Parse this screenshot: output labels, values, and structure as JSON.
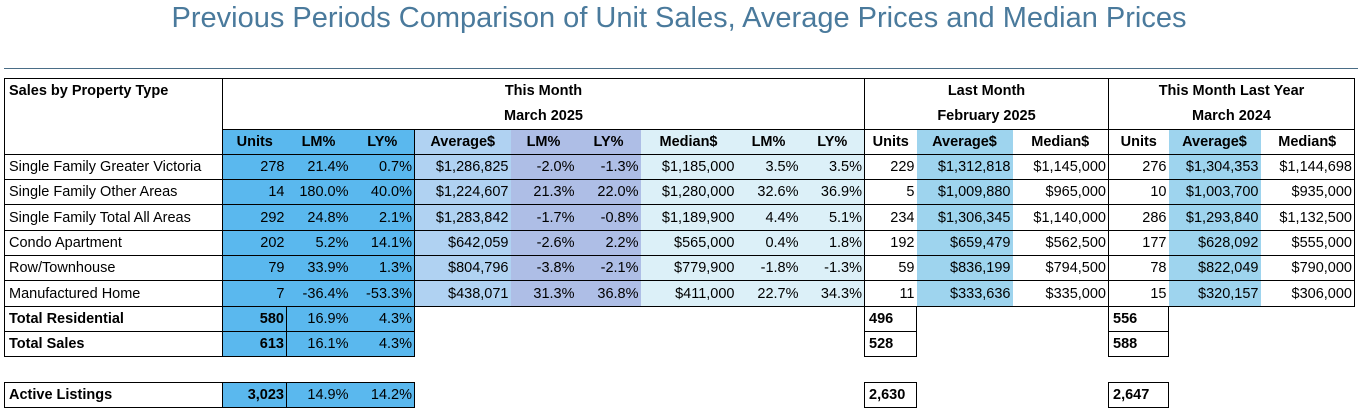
{
  "title": "Previous Periods Comparison of Unit Sales, Average Prices and Median Prices",
  "headers": {
    "row_label": "Sales by Property Type",
    "this_month": "This Month",
    "this_month_date": "March 2025",
    "last_month": "Last Month",
    "last_month_date": "February 2025",
    "last_year": "This Month Last Year",
    "last_year_date": "March 2024",
    "cols": [
      "Units",
      "LM%",
      "LY%",
      "Average$",
      "LM%",
      "LY%",
      "Median$",
      "LM%",
      "LY%",
      "Units",
      "Average$",
      "Median$",
      "Units",
      "Average$",
      "Median$"
    ]
  },
  "rows": [
    {
      "label": "Single Family Greater Victoria",
      "v": [
        "278",
        "21.4%",
        "0.7%",
        "$1,286,825",
        "-2.0%",
        "-1.3%",
        "$1,185,000",
        "3.5%",
        "3.5%",
        "229",
        "$1,312,818",
        "$1,145,000",
        "276",
        "$1,304,353",
        "$1,144,698"
      ]
    },
    {
      "label": "Single Family Other Areas",
      "v": [
        "14",
        "180.0%",
        "40.0%",
        "$1,224,607",
        "21.3%",
        "22.0%",
        "$1,280,000",
        "32.6%",
        "36.9%",
        "5",
        "$1,009,880",
        "$965,000",
        "10",
        "$1,003,700",
        "$935,000"
      ]
    },
    {
      "label": "Single Family Total All Areas",
      "v": [
        "292",
        "24.8%",
        "2.1%",
        "$1,283,842",
        "-1.7%",
        "-0.8%",
        "$1,189,900",
        "4.4%",
        "5.1%",
        "234",
        "$1,306,345",
        "$1,140,000",
        "286",
        "$1,293,840",
        "$1,132,500"
      ]
    },
    {
      "label": "Condo Apartment",
      "v": [
        "202",
        "5.2%",
        "14.1%",
        "$642,059",
        "-2.6%",
        "2.2%",
        "$565,000",
        "0.4%",
        "1.8%",
        "192",
        "$659,479",
        "$562,500",
        "177",
        "$628,092",
        "$555,000"
      ]
    },
    {
      "label": "Row/Townhouse",
      "v": [
        "79",
        "33.9%",
        "1.3%",
        "$804,796",
        "-3.8%",
        "-2.1%",
        "$779,900",
        "-1.8%",
        "-1.3%",
        "59",
        "$836,199",
        "$794,500",
        "78",
        "$822,049",
        "$790,000"
      ]
    },
    {
      "label": "Manufactured Home",
      "v": [
        "7",
        "-36.4%",
        "-53.3%",
        "$438,071",
        "31.3%",
        "36.8%",
        "$411,000",
        "22.7%",
        "34.3%",
        "11",
        "$333,636",
        "$335,000",
        "15",
        "$320,157",
        "$306,000"
      ]
    }
  ],
  "totals": [
    {
      "label": "Total Residential",
      "units": "580",
      "lm": "16.9%",
      "ly": "4.3%",
      "lm_units": "496",
      "ly_units": "556"
    },
    {
      "label": "Total Sales",
      "units": "613",
      "lm": "16.1%",
      "ly": "4.3%",
      "lm_units": "528",
      "ly_units": "588"
    }
  ],
  "active": {
    "label": "Active Listings",
    "units": "3,023",
    "lm": "14.9%",
    "ly": "14.2%",
    "lm_units": "2,630",
    "ly_units": "2,647"
  }
}
